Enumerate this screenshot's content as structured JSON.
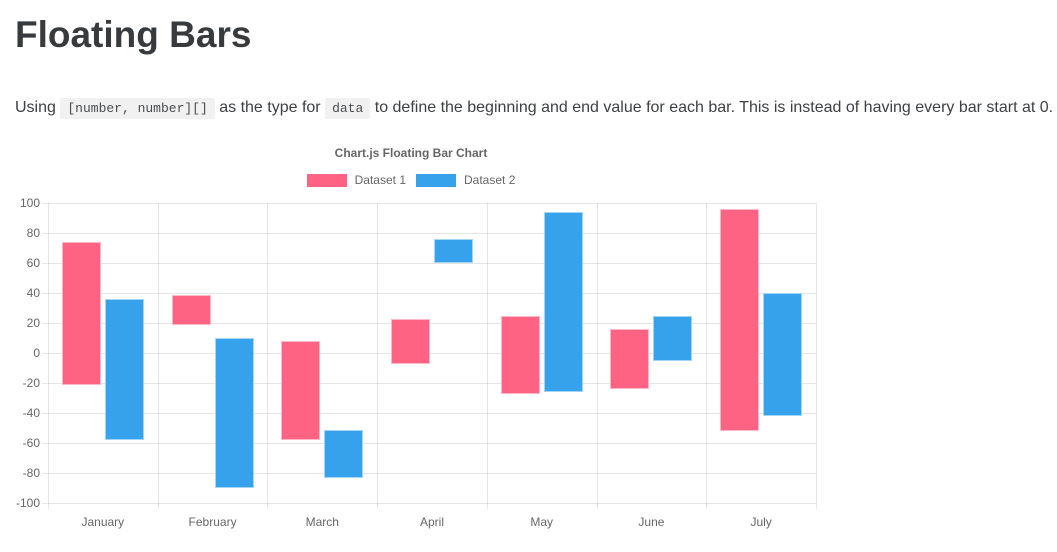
{
  "page": {
    "title": "Floating Bars",
    "description": {
      "part1": "Using ",
      "code1": "[number, number][]",
      "part2": " as the type for ",
      "code2": "data",
      "part3": " to define the beginning and end value for each bar. This is instead of having every bar start at 0."
    }
  },
  "chart_data": {
    "type": "bar",
    "title": "Chart.js Floating Bar Chart",
    "categories": [
      "January",
      "February",
      "March",
      "April",
      "May",
      "June",
      "July"
    ],
    "series": [
      {
        "name": "Dataset 1",
        "color": "#FF6384",
        "values": [
          [
            -21,
            74
          ],
          [
            19,
            39
          ],
          [
            -58,
            8
          ],
          [
            -7,
            23
          ],
          [
            -27,
            25
          ],
          [
            -24,
            16
          ],
          [
            -52,
            96
          ]
        ]
      },
      {
        "name": "Dataset 2",
        "color": "#36A2EB",
        "values": [
          [
            -58,
            36
          ],
          [
            -90,
            10
          ],
          [
            -83,
            -51
          ],
          [
            60,
            76
          ],
          [
            -26,
            94
          ],
          [
            -5,
            25
          ],
          [
            -42,
            40
          ]
        ]
      }
    ],
    "ylim": [
      -100,
      100
    ],
    "ytick_step": 20,
    "grid": true,
    "legend_position": "top",
    "xlabel": "",
    "ylabel": ""
  }
}
